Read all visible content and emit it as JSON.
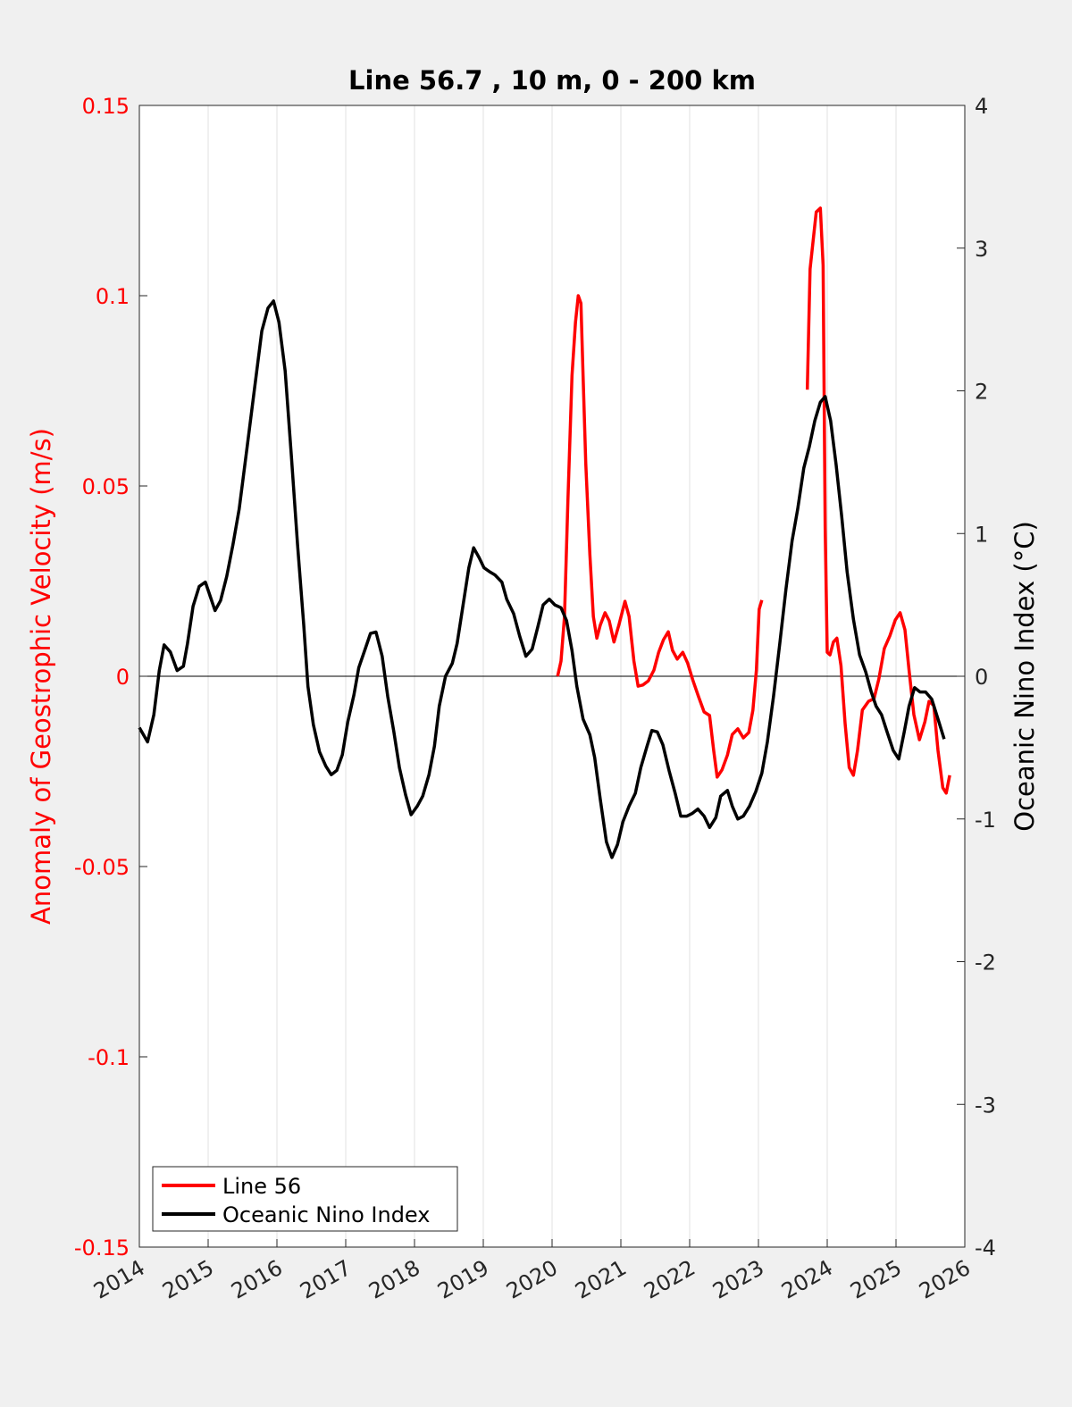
{
  "chart_data": {
    "type": "line",
    "title": "Line 56.7 , 10 m, 0 - 200 km",
    "xlabel": "",
    "ylabel_left": "Anomaly of Geostrophic Velocity (m/s)",
    "ylabel_right": "Oceanic Nino Index (°C)",
    "xlim": [
      2014,
      2026
    ],
    "ylim_left": [
      -0.15,
      0.15
    ],
    "ylim_right": [
      -4,
      4
    ],
    "x_ticks": [
      "2014",
      "2015",
      "2016",
      "2017",
      "2018",
      "2019",
      "2020",
      "2021",
      "2022",
      "2023",
      "2024",
      "2025",
      "2026"
    ],
    "y_ticks_left": [
      "-0.15",
      "-0.1",
      "-0.05",
      "0",
      "0.05",
      "0.1",
      "0.15"
    ],
    "y_ticks_right": [
      "-4",
      "-3",
      "-2",
      "-1",
      "0",
      "1",
      "2",
      "3",
      "4"
    ],
    "grid": "vertical",
    "legend_position": "bottom-left",
    "colors": {
      "line56": "#ff0000",
      "oni": "#000000",
      "left_axis": "#ff0000"
    },
    "series": [
      {
        "name": "Line 56",
        "axis": "left",
        "segments": [
          [
            [
              2020.08,
              0
            ],
            [
              2020.13,
              0.004
            ],
            [
              2020.18,
              0.0157
            ],
            [
              2020.23,
              0.046
            ],
            [
              2020.29,
              0.079
            ],
            [
              2020.34,
              0.093
            ],
            [
              2020.38,
              0.1
            ],
            [
              2020.42,
              0.098
            ],
            [
              2020.45,
              0.079
            ],
            [
              2020.49,
              0.056
            ],
            [
              2020.55,
              0.032
            ],
            [
              2020.6,
              0.0157
            ],
            [
              2020.65,
              0.01
            ],
            [
              2020.7,
              0.0134
            ],
            [
              2020.77,
              0.0167
            ],
            [
              2020.83,
              0.0146
            ],
            [
              2020.9,
              0.009
            ],
            [
              2020.97,
              0.0134
            ],
            [
              2021.06,
              0.0197
            ],
            [
              2021.12,
              0.0157
            ],
            [
              2021.19,
              0.004
            ],
            [
              2021.25,
              -0.0026
            ],
            [
              2021.32,
              -0.0023
            ],
            [
              2021.4,
              -0.0012
            ],
            [
              2021.48,
              0.0016
            ],
            [
              2021.55,
              0.0063
            ],
            [
              2021.62,
              0.0096
            ],
            [
              2021.69,
              0.0117
            ],
            [
              2021.75,
              0.0068
            ],
            [
              2021.82,
              0.0045
            ],
            [
              2021.9,
              0.0063
            ],
            [
              2021.97,
              0.0035
            ],
            [
              2022.05,
              -0.0012
            ],
            [
              2022.13,
              -0.0054
            ],
            [
              2022.21,
              -0.0094
            ],
            [
              2022.29,
              -0.0103
            ],
            [
              2022.35,
              -0.0195
            ],
            [
              2022.4,
              -0.0265
            ],
            [
              2022.47,
              -0.0246
            ],
            [
              2022.55,
              -0.0207
            ],
            [
              2022.62,
              -0.0153
            ],
            [
              2022.7,
              -0.0138
            ],
            [
              2022.78,
              -0.0162
            ],
            [
              2022.86,
              -0.0148
            ],
            [
              2022.92,
              -0.0089
            ],
            [
              2022.97,
              0.0016
            ],
            [
              2023.01,
              0.0176
            ],
            [
              2023.05,
              0.02
            ]
          ],
          [
            [
              2023.71,
              0.0753
            ],
            [
              2023.75,
              0.107
            ],
            [
              2023.81,
              0.117
            ],
            [
              2023.84,
              0.122
            ],
            [
              2023.9,
              0.123
            ],
            [
              2023.94,
              0.108
            ],
            [
              2023.97,
              0.039
            ],
            [
              2024.0,
              0.0063
            ],
            [
              2024.04,
              0.0056
            ],
            [
              2024.09,
              0.009
            ],
            [
              2024.14,
              0.01
            ],
            [
              2024.2,
              0.0028
            ],
            [
              2024.26,
              -0.0124
            ],
            [
              2024.32,
              -0.024
            ],
            [
              2024.38,
              -0.026
            ],
            [
              2024.44,
              -0.0195
            ],
            [
              2024.51,
              -0.0089
            ],
            [
              2024.6,
              -0.0066
            ],
            [
              2024.68,
              -0.0059
            ],
            [
              2024.75,
              -0.0007
            ],
            [
              2024.83,
              0.0073
            ],
            [
              2024.91,
              0.0106
            ],
            [
              2024.99,
              0.0148
            ],
            [
              2025.06,
              0.0167
            ],
            [
              2025.13,
              0.0122
            ],
            [
              2025.19,
              0.0016
            ],
            [
              2025.26,
              -0.0101
            ],
            [
              2025.34,
              -0.0167
            ],
            [
              2025.42,
              -0.012
            ],
            [
              2025.48,
              -0.0066
            ],
            [
              2025.55,
              -0.0077
            ],
            [
              2025.61,
              -0.0195
            ],
            [
              2025.68,
              -0.0293
            ],
            [
              2025.73,
              -0.0307
            ],
            [
              2025.78,
              -0.026
            ]
          ]
        ]
      },
      {
        "name": "Oceanic Nino Index",
        "axis": "right",
        "segments": [
          [
            [
              2014.0,
              -0.36
            ],
            [
              2014.12,
              -0.46
            ],
            [
              2014.21,
              -0.27
            ],
            [
              2014.29,
              0.04
            ],
            [
              2014.36,
              0.22
            ],
            [
              2014.45,
              0.17
            ],
            [
              2014.55,
              0.04
            ],
            [
              2014.64,
              0.07
            ],
            [
              2014.7,
              0.23
            ],
            [
              2014.78,
              0.49
            ],
            [
              2014.87,
              0.63
            ],
            [
              2014.96,
              0.66
            ],
            [
              2015.03,
              0.56
            ],
            [
              2015.1,
              0.46
            ],
            [
              2015.18,
              0.53
            ],
            [
              2015.27,
              0.7
            ],
            [
              2015.36,
              0.92
            ],
            [
              2015.45,
              1.17
            ],
            [
              2015.56,
              1.58
            ],
            [
              2015.68,
              2.04
            ],
            [
              2015.78,
              2.42
            ],
            [
              2015.87,
              2.58
            ],
            [
              2015.95,
              2.63
            ],
            [
              2016.03,
              2.48
            ],
            [
              2016.12,
              2.14
            ],
            [
              2016.21,
              1.54
            ],
            [
              2016.3,
              0.92
            ],
            [
              2016.39,
              0.36
            ],
            [
              2016.45,
              -0.07
            ],
            [
              2016.53,
              -0.34
            ],
            [
              2016.62,
              -0.53
            ],
            [
              2016.71,
              -0.63
            ],
            [
              2016.79,
              -0.69
            ],
            [
              2016.87,
              -0.66
            ],
            [
              2016.95,
              -0.55
            ],
            [
              2017.03,
              -0.32
            ],
            [
              2017.12,
              -0.13
            ],
            [
              2017.19,
              0.06
            ],
            [
              2017.29,
              0.2
            ],
            [
              2017.36,
              0.3
            ],
            [
              2017.44,
              0.31
            ],
            [
              2017.53,
              0.14
            ],
            [
              2017.61,
              -0.14
            ],
            [
              2017.7,
              -0.39
            ],
            [
              2017.78,
              -0.64
            ],
            [
              2017.87,
              -0.83
            ],
            [
              2017.95,
              -0.97
            ],
            [
              2018.04,
              -0.91
            ],
            [
              2018.12,
              -0.84
            ],
            [
              2018.21,
              -0.69
            ],
            [
              2018.29,
              -0.49
            ],
            [
              2018.36,
              -0.21
            ],
            [
              2018.45,
              0
            ],
            [
              2018.55,
              0.09
            ],
            [
              2018.62,
              0.23
            ],
            [
              2018.7,
              0.48
            ],
            [
              2018.79,
              0.76
            ],
            [
              2018.86,
              0.9
            ],
            [
              2018.94,
              0.83
            ],
            [
              2019.01,
              0.76
            ],
            [
              2019.1,
              0.73
            ],
            [
              2019.17,
              0.71
            ],
            [
              2019.27,
              0.66
            ],
            [
              2019.34,
              0.54
            ],
            [
              2019.44,
              0.44
            ],
            [
              2019.53,
              0.28
            ],
            [
              2019.62,
              0.14
            ],
            [
              2019.71,
              0.19
            ],
            [
              2019.79,
              0.34
            ],
            [
              2019.87,
              0.5
            ],
            [
              2019.96,
              0.54
            ],
            [
              2020.04,
              0.5
            ],
            [
              2020.13,
              0.48
            ],
            [
              2020.21,
              0.39
            ],
            [
              2020.29,
              0.18
            ],
            [
              2020.36,
              -0.07
            ],
            [
              2020.45,
              -0.3
            ],
            [
              2020.55,
              -0.41
            ],
            [
              2020.62,
              -0.57
            ],
            [
              2020.7,
              -0.86
            ],
            [
              2020.79,
              -1.16
            ],
            [
              2020.87,
              -1.27
            ],
            [
              2020.95,
              -1.18
            ],
            [
              2021.03,
              -1.02
            ],
            [
              2021.12,
              -0.91
            ],
            [
              2021.21,
              -0.82
            ],
            [
              2021.29,
              -0.64
            ],
            [
              2021.38,
              -0.49
            ],
            [
              2021.45,
              -0.38
            ],
            [
              2021.53,
              -0.39
            ],
            [
              2021.61,
              -0.48
            ],
            [
              2021.7,
              -0.66
            ],
            [
              2021.79,
              -0.82
            ],
            [
              2021.87,
              -0.98
            ],
            [
              2021.96,
              -0.98
            ],
            [
              2022.04,
              -0.96
            ],
            [
              2022.12,
              -0.93
            ],
            [
              2022.21,
              -0.98
            ],
            [
              2022.29,
              -1.06
            ],
            [
              2022.38,
              -0.99
            ],
            [
              2022.45,
              -0.84
            ],
            [
              2022.55,
              -0.8
            ],
            [
              2022.62,
              -0.91
            ],
            [
              2022.7,
              -1.0
            ],
            [
              2022.78,
              -0.98
            ],
            [
              2022.87,
              -0.91
            ],
            [
              2022.96,
              -0.81
            ],
            [
              2023.05,
              -0.68
            ],
            [
              2023.13,
              -0.46
            ],
            [
              2023.22,
              -0.14
            ],
            [
              2023.31,
              0.23
            ],
            [
              2023.4,
              0.61
            ],
            [
              2023.49,
              0.95
            ],
            [
              2023.57,
              1.17
            ],
            [
              2023.66,
              1.46
            ],
            [
              2023.74,
              1.61
            ],
            [
              2023.82,
              1.79
            ],
            [
              2023.9,
              1.92
            ],
            [
              2023.97,
              1.96
            ],
            [
              2024.05,
              1.79
            ],
            [
              2024.13,
              1.48
            ],
            [
              2024.21,
              1.12
            ],
            [
              2024.29,
              0.73
            ],
            [
              2024.38,
              0.4
            ],
            [
              2024.47,
              0.15
            ],
            [
              2024.56,
              0.03
            ],
            [
              2024.64,
              -0.11
            ],
            [
              2024.71,
              -0.21
            ],
            [
              2024.79,
              -0.27
            ],
            [
              2024.87,
              -0.39
            ],
            [
              2024.96,
              -0.52
            ],
            [
              2025.04,
              -0.58
            ],
            [
              2025.12,
              -0.39
            ],
            [
              2025.19,
              -0.21
            ],
            [
              2025.27,
              -0.08
            ],
            [
              2025.35,
              -0.11
            ],
            [
              2025.43,
              -0.11
            ],
            [
              2025.52,
              -0.16
            ],
            [
              2025.61,
              -0.3
            ],
            [
              2025.7,
              -0.44
            ]
          ]
        ]
      }
    ]
  }
}
